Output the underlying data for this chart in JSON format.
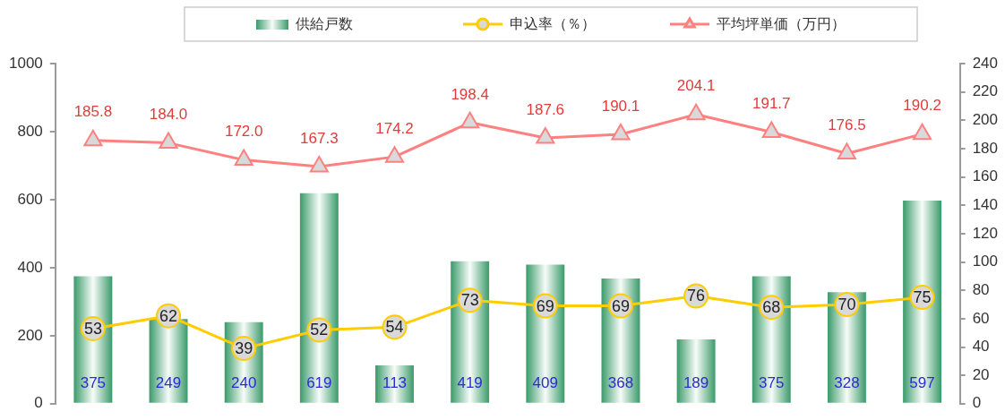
{
  "chart_data": {
    "type": "bar",
    "categories": [
      null,
      null,
      null,
      null,
      null,
      null,
      null,
      null,
      null,
      null,
      null,
      null
    ],
    "series": [
      {
        "name": "供給戸数",
        "color": "#3a9a6a",
        "values": [
          375,
          249,
          240,
          619,
          113,
          419,
          409,
          368,
          189,
          375,
          328,
          597
        ]
      },
      {
        "name": "申込率（％）",
        "type": "line",
        "axis": "y2",
        "color": "#ffcc00",
        "marker": "circle",
        "values": [
          53,
          62,
          39,
          52,
          54,
          73,
          69,
          69,
          76,
          68,
          70,
          75
        ]
      },
      {
        "name": "平均坪単価（万円）",
        "type": "line",
        "axis": "y2",
        "color": "#ff8080",
        "marker": "triangle",
        "values": [
          185.8,
          184.0,
          172.0,
          167.3,
          174.2,
          198.4,
          187.6,
          190.1,
          204.1,
          191.7,
          176.5,
          190.2
        ],
        "value_labels": [
          "185.8",
          "184.0",
          "172.0",
          "167.3",
          "174.2",
          "198.4",
          "187.6",
          "190.1",
          "204.1",
          "191.7",
          "176.5",
          "190.2"
        ]
      }
    ],
    "ylim": [
      0,
      1000
    ],
    "yticks": [
      0,
      200,
      400,
      600,
      800,
      1000
    ],
    "y2lim": [
      0,
      240
    ],
    "y2ticks": [
      0,
      20,
      40,
      60,
      80,
      100,
      120,
      140,
      160,
      180,
      200,
      220,
      240
    ],
    "legend": "top",
    "data_labels": true
  }
}
